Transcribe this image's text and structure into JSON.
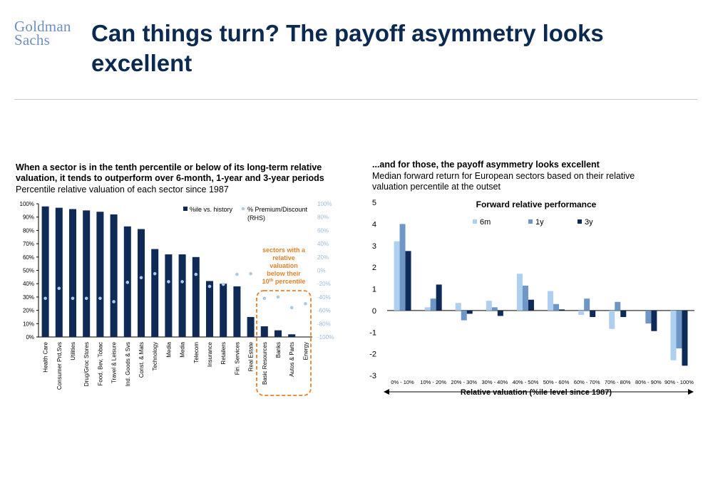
{
  "brand": {
    "line1": "Goldman",
    "line2": "Sachs"
  },
  "slide_title": "Can things turn? The payoff asymmetry looks excellent",
  "left_panel": {
    "heading": "When a sector is in the tenth percentile or below of its long-term relative valuation, it tends to outperform over 6-month, 1-year  and 3-year periods",
    "subheading": "Percentile relative valuation of each sector since 1987",
    "annotation": [
      "sectors with a",
      "relative",
      "valuation",
      "below their",
      "10",
      "th",
      " percentile"
    ]
  },
  "right_panel": {
    "heading": "...and for those, the payoff asymmetry looks excellent",
    "subheading": "Median forward return for European sectors based on their relative valuation percentile at the outset"
  },
  "chart_data": [
    {
      "type": "bar",
      "title": "",
      "categories": [
        "Health Care",
        "Consumer Prd,Svs",
        "Utilities",
        "Drug/Groc Stores",
        "Food, Bev, Tobac",
        "Travel & Leisure",
        "Ind. Goods & Svs",
        "Const. & Mats",
        "Technology",
        "Media",
        "Media",
        "Telecom",
        "Insurance",
        "Retailers",
        "Fin. Services",
        "Real Estate",
        "Basic Resources",
        "Banks",
        "Autos & Parts",
        "Energy"
      ],
      "series": [
        {
          "name": "%ile vs. history",
          "kind": "bar",
          "axis": "left",
          "color": "#0e2a56",
          "values": [
            98,
            97,
            96,
            95,
            94,
            92,
            83,
            81,
            66,
            62,
            62,
            60,
            42,
            40,
            38,
            15,
            8,
            5,
            2,
            0
          ]
        },
        {
          "name": "% Premium/Discount (RHS)",
          "kind": "dot",
          "axis": "right",
          "color": "#a9cbe8",
          "values": [
            -42,
            -27,
            -42,
            -42,
            -42,
            -47,
            -18,
            -11,
            -5,
            -17,
            -17,
            -6,
            -24,
            -21,
            -6,
            -5,
            -42,
            -40,
            -56,
            -50
          ]
        }
      ],
      "y_left": {
        "min": 0,
        "max": 100,
        "ticks": [
          "0%",
          "10%",
          "20%",
          "30%",
          "40%",
          "50%",
          "60%",
          "70%",
          "80%",
          "90%",
          "100%"
        ]
      },
      "y_right": {
        "min": -100,
        "max": 100,
        "ticks": [
          "-100%",
          "-80%",
          "-60%",
          "-40%",
          "-20%",
          "0%",
          "20%",
          "40%",
          "60%",
          "80%",
          "100%"
        ]
      },
      "legend": {
        "position": "top-right",
        "label_a": "%ile vs. history",
        "label_b_line1": "% Premium/Discount",
        "label_b_line2": "(RHS)"
      },
      "grid": false
    },
    {
      "type": "bar",
      "title": "Forward relative performance",
      "xlabel": "Relative valuation (%ile level since 1987)",
      "categories": [
        "0% - 10%",
        "10% - 20%",
        "20% - 30%",
        "30% - 40%",
        "40% - 50%",
        "50% - 60%",
        "60% - 70%",
        "70% - 80%",
        "80% - 90%",
        "90% - 100%"
      ],
      "series": [
        {
          "name": "6m",
          "color": "#aecff0",
          "values": [
            3.2,
            0.15,
            0.35,
            0.45,
            1.7,
            0.9,
            -0.2,
            -0.85,
            0,
            -2.3
          ]
        },
        {
          "name": "1y",
          "color": "#6e96c6",
          "values": [
            4.0,
            0.55,
            -0.45,
            0.15,
            1.15,
            0.3,
            0.55,
            0.4,
            -0.6,
            -1.75
          ]
        },
        {
          "name": "3y",
          "color": "#0e2a56",
          "values": [
            2.75,
            1.2,
            -0.15,
            -0.25,
            0.5,
            0.05,
            -0.3,
            -0.3,
            -0.95,
            -2.55
          ]
        }
      ],
      "ylim": [
        -3,
        5
      ],
      "y_ticks": [
        "-3",
        "-2",
        "-1",
        "0",
        "1",
        "2",
        "3",
        "4",
        "5"
      ],
      "legend": "top",
      "grid": false
    }
  ]
}
